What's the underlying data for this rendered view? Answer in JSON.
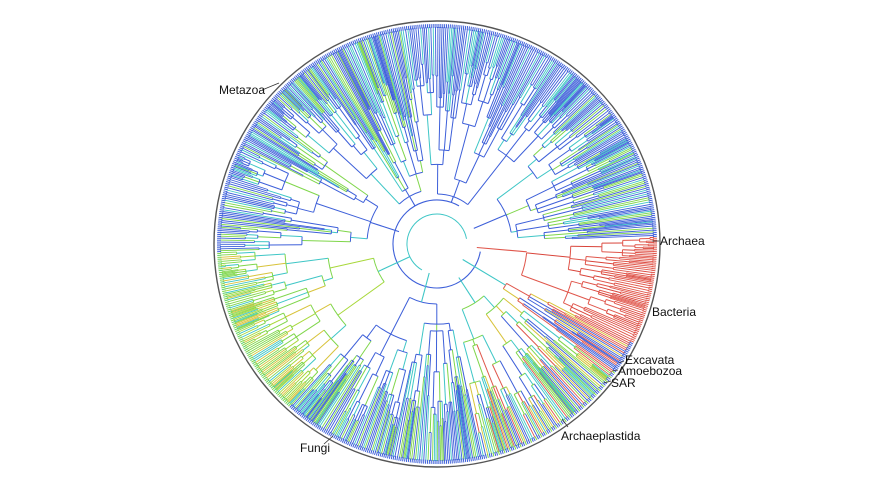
{
  "clades": [
    {
      "id": "metazoa",
      "label": "Metazoa",
      "color": "#3f5fd8"
    },
    {
      "id": "archaea",
      "label": "Archaea",
      "color": "#e05a50"
    },
    {
      "id": "bacteria",
      "label": "Bacteria",
      "color": "#e2665b"
    },
    {
      "id": "excavata",
      "label": "Excavata",
      "color": "#d24b3e"
    },
    {
      "id": "amoebozoa",
      "label": "Amoebozoa",
      "color": "#4a6ad6"
    },
    {
      "id": "sar",
      "label": "SAR",
      "color": "#4e84d8"
    },
    {
      "id": "archaeplastida",
      "label": "Archaeplastida",
      "color": "#9fcf3f"
    },
    {
      "id": "fungi",
      "label": "Fungi",
      "color": "#4763da"
    }
  ],
  "palette": {
    "blue": "#3d5fd9",
    "cyan": "#3ec6c6",
    "green": "#7fd64a",
    "yellow": "#d8c33a",
    "red": "#e0564b",
    "outer_circle": "#444444"
  }
}
